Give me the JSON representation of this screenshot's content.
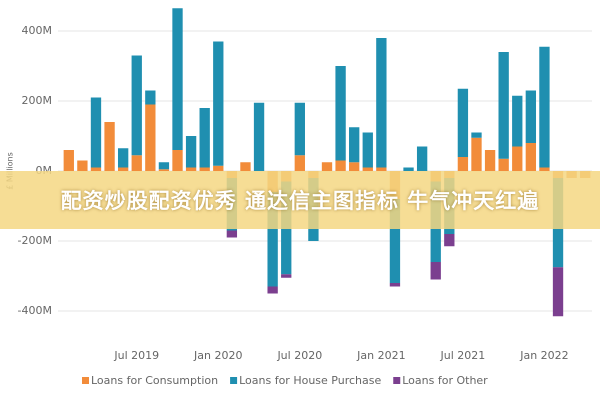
{
  "chart_data": {
    "type": "bar",
    "stacked": true,
    "y_label": "£ Millions",
    "categories": [
      null,
      null,
      null,
      null,
      null,
      "Jul 2019",
      null,
      null,
      null,
      null,
      null,
      "Jan 2020",
      null,
      null,
      null,
      null,
      null,
      "Jul 2020",
      null,
      null,
      null,
      null,
      null,
      "Jan 2021",
      null,
      null,
      null,
      null,
      null,
      "Jul 2021",
      null,
      null,
      null,
      null,
      null,
      "Jan 2022",
      null,
      null,
      null
    ],
    "series": [
      {
        "name": "Loans for Consumption",
        "color": "#f28c3a",
        "values": [
          60,
          30,
          10,
          140,
          10,
          45,
          190,
          5,
          60,
          10,
          10,
          15,
          -20,
          25,
          0,
          -60,
          -30,
          45,
          -20,
          25,
          30,
          25,
          10,
          10,
          -80,
          0,
          0,
          -30,
          -20,
          40,
          95,
          60,
          35,
          70,
          80,
          10,
          -20,
          -20,
          -20
        ]
      },
      {
        "name": "Loans for House Purchase",
        "color": "#1f8fb0",
        "values": [
          0,
          0,
          200,
          0,
          55,
          285,
          40,
          20,
          405,
          90,
          170,
          355,
          -150,
          0,
          195,
          -270,
          -265,
          150,
          -180,
          0,
          270,
          100,
          100,
          370,
          -240,
          10,
          70,
          -230,
          -160,
          195,
          15,
          0,
          305,
          145,
          150,
          345,
          -255,
          0,
          0
        ]
      },
      {
        "name": "Loans for Other",
        "color": "#7b3f8f",
        "values": [
          0,
          0,
          0,
          0,
          0,
          0,
          0,
          0,
          0,
          0,
          0,
          0,
          -20,
          0,
          0,
          -20,
          -10,
          0,
          0,
          0,
          0,
          0,
          0,
          0,
          -10,
          0,
          0,
          -50,
          -35,
          0,
          0,
          0,
          0,
          0,
          0,
          0,
          -140,
          0,
          0
        ]
      }
    ],
    "ylim": [
      -480,
      470
    ],
    "yticks": [
      {
        "value": -400,
        "label": "-400M"
      },
      {
        "value": -200,
        "label": "-200M"
      },
      {
        "value": 0,
        "label": "0M"
      },
      {
        "value": 200,
        "label": "200M"
      },
      {
        "value": 400,
        "label": "400M"
      }
    ],
    "grid": true,
    "legend": "bottom"
  },
  "overlay_text": "配资炒股配资优秀 通达信主图指标 牛气冲天红遍"
}
